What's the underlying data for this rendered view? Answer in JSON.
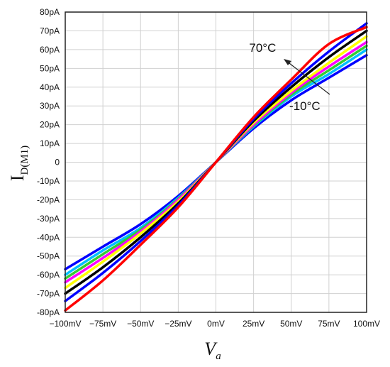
{
  "chart_data": {
    "type": "line",
    "xlabel": "V",
    "xlabel_sub": "a",
    "ylabel": "I",
    "ylabel_sub": "D(M1)",
    "xlim": [
      -100,
      100
    ],
    "ylim": [
      -80,
      80
    ],
    "x_ticks": [
      {
        "value": -100,
        "label": "−100mV"
      },
      {
        "value": -75,
        "label": "−75mV"
      },
      {
        "value": -50,
        "label": "−50mV"
      },
      {
        "value": -25,
        "label": "−25mV"
      },
      {
        "value": 0,
        "label": "0mV"
      },
      {
        "value": 25,
        "label": "25mV"
      },
      {
        "value": 50,
        "label": "50mV"
      },
      {
        "value": 75,
        "label": "75mV"
      },
      {
        "value": 100,
        "label": "100mV"
      }
    ],
    "y_ticks": [
      {
        "value": 80,
        "label": "80pA"
      },
      {
        "value": 70,
        "label": "70pA"
      },
      {
        "value": 60,
        "label": "60pA"
      },
      {
        "value": 50,
        "label": "50pA"
      },
      {
        "value": 40,
        "label": "40pA"
      },
      {
        "value": 30,
        "label": "30pA"
      },
      {
        "value": 20,
        "label": "20pA"
      },
      {
        "value": 10,
        "label": "10pA"
      },
      {
        "value": 0,
        "label": "0"
      },
      {
        "value": -10,
        "label": "-10pA"
      },
      {
        "value": -20,
        "label": "-20pA"
      },
      {
        "value": -30,
        "label": "-30pA"
      },
      {
        "value": -40,
        "label": "-40pA"
      },
      {
        "value": -50,
        "label": "-50pA"
      },
      {
        "value": -60,
        "label": "-60pA"
      },
      {
        "value": -70,
        "label": "-70pA"
      },
      {
        "value": -80,
        "label": "-80pA"
      }
    ],
    "grid": true,
    "x": [
      -100,
      -75,
      -50,
      -25,
      0,
      25,
      50,
      75,
      100
    ],
    "series": [
      {
        "color": "#0000ff",
        "values": [
          -57,
          -45,
          -33,
          -18,
          0,
          18,
          33,
          45,
          57
        ]
      },
      {
        "color": "#00bfff",
        "values": [
          -60,
          -47,
          -35,
          -19,
          0,
          19,
          35,
          47,
          60
        ]
      },
      {
        "color": "#33cc33",
        "values": [
          -62,
          -49,
          -36,
          -19.5,
          0,
          19.5,
          36,
          49,
          62
        ]
      },
      {
        "color": "#ff00ff",
        "values": [
          -64,
          -51,
          -37,
          -20,
          0,
          20,
          37,
          51,
          64
        ]
      },
      {
        "color": "#ffff00",
        "values": [
          -67,
          -53,
          -38,
          -21,
          0,
          21,
          38,
          53,
          67
        ]
      },
      {
        "color": "#000000",
        "values": [
          -70,
          -56,
          -40,
          -22,
          0,
          22,
          40,
          56,
          70
        ]
      },
      {
        "color": "#0000ff",
        "values": [
          -74,
          -59,
          -42,
          -23,
          0,
          23,
          42,
          59,
          74
        ]
      },
      {
        "color": "#ff0000",
        "values": [
          -79,
          -63,
          -44,
          -24,
          0,
          24,
          44,
          63,
          72
        ]
      }
    ],
    "annotations": [
      {
        "text": "70°C",
        "x": 31,
        "y": 61
      },
      {
        "text": "-10°C",
        "x": 59,
        "y": 30
      }
    ]
  }
}
